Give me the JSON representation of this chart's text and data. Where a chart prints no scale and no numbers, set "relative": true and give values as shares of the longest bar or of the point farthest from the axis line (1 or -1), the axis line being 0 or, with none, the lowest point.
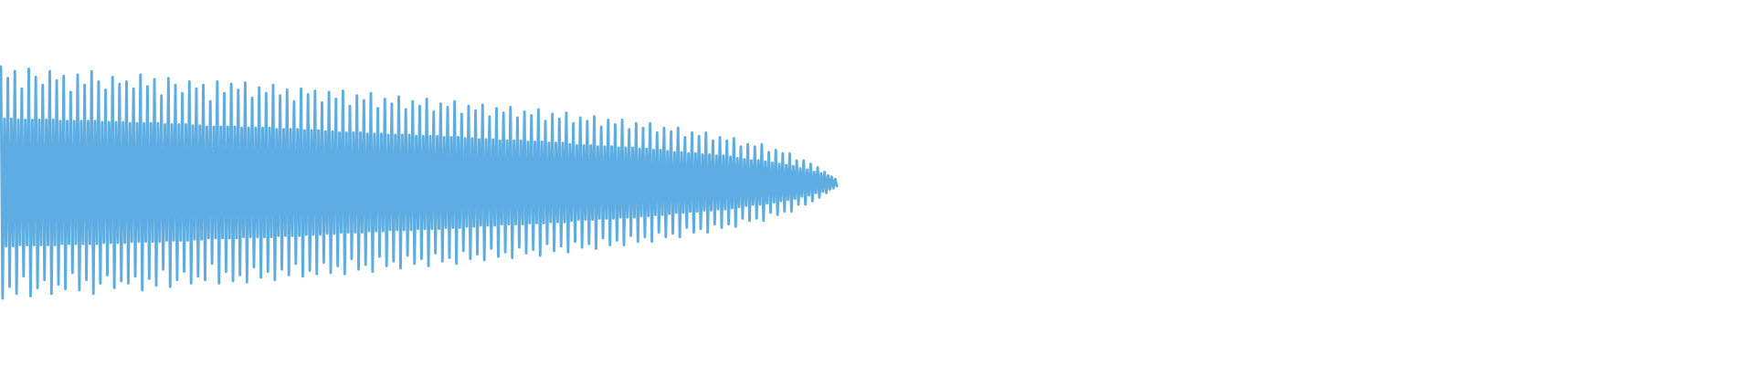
{
  "chart_data": {
    "type": "line",
    "relative": true,
    "categories": [
      null,
      null,
      null,
      null,
      null,
      null,
      null,
      null,
      null,
      null,
      null,
      null,
      null,
      null,
      null,
      null,
      null,
      null,
      null,
      null,
      null,
      null,
      null,
      null,
      null,
      null,
      null,
      null,
      null,
      null,
      null,
      null,
      null,
      null,
      null,
      null,
      null,
      null,
      null,
      null,
      null,
      null,
      null,
      null,
      null,
      null,
      null,
      null,
      null,
      null,
      null,
      null,
      null,
      null,
      null,
      null,
      null,
      null,
      null,
      null,
      null,
      null,
      null,
      null,
      null,
      null,
      null,
      null,
      null,
      null,
      null,
      null,
      null,
      null,
      null,
      null,
      null,
      null,
      null,
      null,
      null,
      null,
      null,
      null,
      null,
      null,
      null,
      null,
      null,
      null,
      null,
      null,
      null,
      null,
      null,
      null,
      null,
      null,
      null,
      null,
      null,
      null,
      null,
      null,
      null,
      null,
      null,
      null,
      null,
      null,
      null,
      null,
      null,
      null,
      null,
      null,
      null,
      null,
      null,
      null,
      null,
      null,
      null,
      null,
      null,
      null,
      null,
      null,
      null,
      null,
      null,
      null,
      null,
      null,
      null,
      null,
      null,
      null,
      null,
      null,
      null,
      null,
      null,
      null,
      null,
      null,
      null,
      null,
      null,
      null,
      null,
      null,
      null,
      null,
      null,
      null,
      null,
      null,
      null,
      null,
      null,
      null,
      null,
      null,
      null,
      null,
      null,
      null,
      null,
      null,
      null,
      null,
      null,
      null,
      null,
      null,
      null,
      null,
      null,
      null,
      null,
      null,
      null,
      null,
      null,
      null,
      null,
      null,
      null,
      null,
      null,
      null,
      null,
      null,
      null,
      null,
      null,
      null,
      null,
      null,
      null,
      null,
      null,
      null,
      null,
      null,
      null,
      null,
      null,
      null,
      null,
      null,
      null,
      null,
      null,
      null,
      null,
      null,
      null,
      null,
      null,
      null,
      null,
      null,
      null,
      null,
      null,
      null,
      null,
      null,
      null,
      null,
      null,
      null,
      null,
      null,
      null,
      null,
      null,
      null,
      null,
      null,
      null,
      null,
      null,
      null,
      null,
      null,
      null,
      null,
      null,
      null,
      null,
      null,
      null,
      null,
      null,
      null,
      null,
      null,
      null,
      null,
      null,
      null,
      null,
      null,
      null,
      null,
      null,
      null,
      null,
      null,
      null,
      null,
      null,
      null,
      null,
      null,
      null,
      null,
      null,
      null,
      null,
      null,
      null,
      null,
      null,
      null,
      null,
      null,
      null,
      null,
      null,
      null,
      null,
      null,
      null,
      null,
      null,
      null,
      null,
      null,
      null,
      null,
      null,
      null,
      null,
      null,
      null,
      null,
      null,
      null,
      null,
      null,
      null,
      null,
      null,
      null,
      null,
      null,
      null,
      null,
      null,
      null,
      null,
      null,
      null,
      null,
      null,
      null,
      null,
      null,
      null,
      null,
      null,
      null,
      null,
      null,
      null,
      null,
      null,
      null,
      null,
      null,
      null,
      null,
      null,
      null,
      null,
      null,
      null,
      null,
      null,
      null,
      null,
      null,
      null,
      null,
      null,
      null,
      null,
      null,
      null,
      null,
      null,
      null,
      null,
      null,
      null,
      null,
      null,
      null,
      null,
      null,
      null,
      null,
      null,
      null,
      null,
      null,
      null,
      null,
      null,
      null,
      null,
      null,
      null,
      null,
      null,
      null,
      null,
      null,
      null,
      null,
      null,
      null,
      null,
      null,
      null,
      null,
      null,
      null,
      null,
      null,
      null,
      null,
      null,
      null,
      null,
      null,
      null,
      null,
      null,
      null,
      null,
      null,
      null,
      null,
      null,
      null,
      null,
      null,
      null,
      null,
      null,
      null,
      null,
      null,
      null,
      null,
      null,
      null,
      null,
      null,
      null,
      null,
      null,
      null,
      null,
      null,
      null,
      null,
      null,
      null,
      null,
      null,
      null,
      null,
      null,
      null,
      null,
      null,
      null,
      null,
      null,
      null,
      null,
      null,
      null,
      null,
      null,
      null,
      null,
      null,
      null,
      null,
      null,
      null,
      null,
      null,
      null,
      null,
      null,
      null,
      null,
      null,
      null,
      null,
      null,
      null
    ],
    "series": [
      {
        "color": "#5dade2",
        "values": [
          1.0,
          0.0,
          0.775,
          0.225,
          0.95,
          0.05,
          0.775,
          0.225,
          0.98,
          0.02,
          0.77,
          0.23,
          0.905,
          0.095,
          0.77,
          0.23,
          0.99,
          0.01,
          0.77,
          0.23,
          0.955,
          0.045,
          0.77,
          0.23,
          0.92,
          0.08,
          0.77,
          0.23,
          0.98,
          0.02,
          0.77,
          0.23,
          0.94,
          0.06,
          0.765,
          0.235,
          0.96,
          0.04,
          0.765,
          0.235,
          0.89,
          0.11,
          0.765,
          0.235,
          0.965,
          0.035,
          0.765,
          0.235,
          0.92,
          0.08,
          0.765,
          0.235,
          0.98,
          0.02,
          0.765,
          0.235,
          0.935,
          0.065,
          0.76,
          0.24,
          0.9,
          0.1,
          0.76,
          0.24,
          0.955,
          0.045,
          0.76,
          0.24,
          0.925,
          0.075,
          0.76,
          0.24,
          0.935,
          0.065,
          0.755,
          0.245,
          0.905,
          0.095,
          0.755,
          0.245,
          0.965,
          0.035,
          0.755,
          0.245,
          0.915,
          0.085,
          0.755,
          0.245,
          0.945,
          0.055,
          0.755,
          0.245,
          0.875,
          0.125,
          0.75,
          0.25,
          0.95,
          0.05,
          0.75,
          0.25,
          0.92,
          0.08,
          0.75,
          0.25,
          0.885,
          0.115,
          0.75,
          0.25,
          0.935,
          0.065,
          0.745,
          0.255,
          0.905,
          0.095,
          0.745,
          0.255,
          0.92,
          0.08,
          0.74,
          0.26,
          0.85,
          0.15,
          0.74,
          0.26,
          0.935,
          0.065,
          0.74,
          0.26,
          0.885,
          0.115,
          0.74,
          0.26,
          0.925,
          0.075,
          0.74,
          0.26,
          0.9,
          0.1,
          0.735,
          0.265,
          0.93,
          0.07,
          0.735,
          0.265,
          0.865,
          0.135,
          0.735,
          0.265,
          0.91,
          0.09,
          0.735,
          0.265,
          0.885,
          0.115,
          0.735,
          0.265,
          0.92,
          0.08,
          0.73,
          0.27,
          0.875,
          0.125,
          0.73,
          0.27,
          0.9,
          0.1,
          0.73,
          0.27,
          0.85,
          0.15,
          0.73,
          0.27,
          0.905,
          0.095,
          0.725,
          0.275,
          0.88,
          0.12,
          0.725,
          0.275,
          0.895,
          0.105,
          0.725,
          0.275,
          0.845,
          0.155,
          0.72,
          0.28,
          0.89,
          0.11,
          0.72,
          0.28,
          0.86,
          0.14,
          0.715,
          0.285,
          0.895,
          0.105,
          0.715,
          0.285,
          0.83,
          0.17,
          0.715,
          0.285,
          0.875,
          0.125,
          0.715,
          0.285,
          0.855,
          0.145,
          0.71,
          0.29,
          0.885,
          0.115,
          0.71,
          0.29,
          0.82,
          0.18,
          0.71,
          0.29,
          0.86,
          0.14,
          0.705,
          0.295,
          0.84,
          0.16,
          0.705,
          0.295,
          0.87,
          0.13,
          0.705,
          0.295,
          0.815,
          0.185,
          0.705,
          0.295,
          0.85,
          0.15,
          0.7,
          0.3,
          0.83,
          0.17,
          0.7,
          0.3,
          0.86,
          0.14,
          0.7,
          0.3,
          0.805,
          0.195,
          0.7,
          0.3,
          0.84,
          0.16,
          0.695,
          0.305,
          0.825,
          0.175,
          0.695,
          0.305,
          0.85,
          0.15,
          0.695,
          0.305,
          0.795,
          0.205,
          0.69,
          0.31,
          0.83,
          0.17,
          0.69,
          0.31,
          0.81,
          0.19,
          0.685,
          0.315,
          0.835,
          0.165,
          0.685,
          0.315,
          0.785,
          0.215,
          0.685,
          0.315,
          0.82,
          0.18,
          0.68,
          0.32,
          0.8,
          0.2,
          0.68,
          0.32,
          0.825,
          0.175,
          0.68,
          0.32,
          0.78,
          0.22,
          0.68,
          0.32,
          0.805,
          0.195,
          0.675,
          0.325,
          0.79,
          0.21,
          0.675,
          0.325,
          0.815,
          0.185,
          0.675,
          0.325,
          0.765,
          0.235,
          0.67,
          0.33,
          0.795,
          0.205,
          0.67,
          0.33,
          0.775,
          0.225,
          0.67,
          0.33,
          0.8,
          0.2,
          0.665,
          0.335,
          0.755,
          0.245,
          0.66,
          0.34,
          0.78,
          0.22,
          0.66,
          0.34,
          0.765,
          0.235,
          0.66,
          0.34,
          0.785,
          0.215,
          0.655,
          0.345,
          0.74,
          0.26,
          0.655,
          0.345,
          0.77,
          0.23,
          0.655,
          0.345,
          0.75,
          0.25,
          0.65,
          0.35,
          0.77,
          0.23,
          0.65,
          0.35,
          0.73,
          0.27,
          0.65,
          0.35,
          0.755,
          0.245,
          0.645,
          0.355,
          0.735,
          0.265,
          0.645,
          0.355,
          0.755,
          0.245,
          0.64,
          0.36,
          0.715,
          0.285,
          0.64,
          0.36,
          0.735,
          0.265,
          0.635,
          0.365,
          0.72,
          0.28,
          0.63,
          0.37,
          0.735,
          0.265,
          0.63,
          0.37,
          0.695,
          0.305,
          0.625,
          0.375,
          0.715,
          0.285,
          0.625,
          0.375,
          0.7,
          0.3,
          0.62,
          0.38,
          0.715,
          0.285,
          0.62,
          0.38,
          0.68,
          0.32,
          0.615,
          0.385,
          0.695,
          0.305,
          0.615,
          0.385,
          0.68,
          0.32,
          0.61,
          0.39,
          0.69,
          0.31,
          0.605,
          0.395,
          0.655,
          0.345,
          0.6,
          0.4,
          0.665,
          0.335,
          0.595,
          0.405,
          0.655,
          0.345,
          0.595,
          0.405,
          0.665,
          0.335,
          0.59,
          0.41,
          0.63,
          0.37,
          0.585,
          0.415,
          0.64,
          0.36,
          0.58,
          0.42,
          0.625,
          0.375,
          0.575,
          0.425,
          0.625,
          0.375,
          0.57,
          0.43,
          0.595,
          0.405,
          0.56,
          0.44,
          0.595,
          0.405,
          0.555,
          0.445,
          0.58,
          0.42,
          0.545,
          0.455,
          0.565,
          0.435,
          0.54,
          0.46,
          0.545,
          0.455,
          0.53,
          0.47,
          0.525,
          0.475,
          0.515,
          0.485
        ]
      }
    ]
  }
}
